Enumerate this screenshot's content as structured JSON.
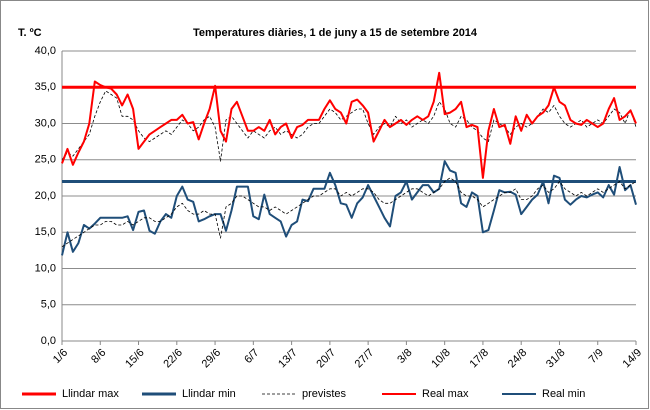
{
  "chart_data": {
    "type": "line",
    "title": "Temperatures diàries, 1 de juny a 15 de setembre 2014",
    "y_label": "T. ºC",
    "categories": [
      "1/6",
      null,
      null,
      null,
      null,
      null,
      null,
      "8/6",
      null,
      null,
      null,
      null,
      null,
      null,
      "15/6",
      null,
      null,
      null,
      null,
      null,
      null,
      "22/6",
      null,
      null,
      null,
      null,
      null,
      null,
      "29/6",
      null,
      null,
      null,
      null,
      null,
      null,
      "6/7",
      null,
      null,
      null,
      null,
      null,
      null,
      "13/7",
      null,
      null,
      null,
      null,
      null,
      null,
      "20/7",
      null,
      null,
      null,
      null,
      null,
      null,
      "27/7",
      null,
      null,
      null,
      null,
      null,
      null,
      "3/8",
      null,
      null,
      null,
      null,
      null,
      null,
      "10/8",
      null,
      null,
      null,
      null,
      null,
      null,
      "17/8",
      null,
      null,
      null,
      null,
      null,
      null,
      "24/8",
      null,
      null,
      null,
      null,
      null,
      null,
      "31/8",
      null,
      null,
      null,
      null,
      null,
      null,
      "7/9",
      null,
      null,
      null,
      null,
      null,
      null,
      "14/9"
    ],
    "ylim": [
      0,
      40
    ],
    "yticks": [
      {
        "value": 0,
        "label": "0,0"
      },
      {
        "value": 5,
        "label": "5,0"
      },
      {
        "value": 10,
        "label": "10,0"
      },
      {
        "value": 15,
        "label": "15,0"
      },
      {
        "value": 20,
        "label": "20,0"
      },
      {
        "value": 25,
        "label": "25,0"
      },
      {
        "value": 30,
        "label": "30,0"
      },
      {
        "value": 35,
        "label": "35,0"
      },
      {
        "value": 40,
        "label": "40,0"
      }
    ],
    "grid": true,
    "legend": "bottom",
    "series": [
      {
        "name": "Llindar max",
        "color": "#ff0000",
        "threshold": 35
      },
      {
        "name": "Llindar min",
        "color": "#1f4e79",
        "threshold": 22
      },
      {
        "name": "previstes",
        "color": "#000000",
        "dash": true,
        "values": [
          25,
          26,
          25.5,
          26.5,
          27.5,
          28.5,
          31,
          33,
          34.5,
          34,
          33.5,
          31,
          31,
          30.5,
          29,
          28,
          27.5,
          28,
          28.5,
          29,
          28.5,
          29.5,
          30.5,
          30,
          29,
          29.5,
          30.5,
          31,
          29.5,
          24.8,
          30.5,
          31,
          30,
          29,
          28,
          29,
          28.5,
          28,
          29,
          29.5,
          28.5,
          29,
          28.5,
          28,
          28.5,
          29.5,
          30,
          30,
          31,
          32,
          31.5,
          30.5,
          31,
          31.5,
          32,
          32,
          30,
          28.5,
          29.5,
          30,
          29.5,
          31,
          30,
          30.5,
          29.5,
          30,
          30.5,
          30,
          31,
          33,
          32,
          30,
          29.5,
          31,
          30.5,
          29.5,
          29,
          28,
          27.5,
          30.5,
          30,
          29.5,
          28.5,
          29.5,
          30,
          29.5,
          30,
          31,
          32,
          31.5,
          32.5,
          31,
          30,
          29.5,
          30,
          30.5,
          29.5,
          30,
          30.5,
          30,
          31,
          32,
          31.5,
          30,
          32,
          29.5
        ]
      },
      {
        "name": "Real max",
        "color": "#ff0000",
        "values": [
          24.5,
          26.5,
          24.3,
          26,
          27.5,
          30,
          35.8,
          35.3,
          35,
          34.8,
          34,
          32.5,
          34,
          32,
          26.5,
          27.5,
          28.5,
          29,
          29.5,
          30,
          30.5,
          30.5,
          31.2,
          30,
          30.2,
          27.8,
          30,
          32,
          35.2,
          29,
          27.5,
          32,
          33,
          31,
          29,
          29,
          29.5,
          29,
          30.5,
          28.5,
          29.5,
          30,
          28,
          29.5,
          29.8,
          30.5,
          30.5,
          30.5,
          32,
          33.2,
          32,
          31.5,
          30,
          33,
          33.3,
          32.5,
          31.5,
          27.5,
          29,
          30.5,
          29.5,
          30,
          30.5,
          29.8,
          30.5,
          31,
          30.5,
          31,
          33,
          37,
          31.3,
          31.5,
          32,
          33,
          29.5,
          29.8,
          29.5,
          22.5,
          29,
          32,
          29.5,
          29.8,
          27.2,
          31,
          29,
          31.2,
          30,
          31,
          31.5,
          32.5,
          35,
          33,
          32.5,
          30.5,
          30,
          29.8,
          30.5,
          30,
          29.5,
          30,
          32,
          33.5,
          30.5,
          31,
          31.8,
          30
        ]
      },
      {
        "name": "Real min",
        "color": "#1f4e79",
        "values": [
          11.8,
          15,
          12.3,
          13.5,
          16,
          15.5,
          16.2,
          17,
          17,
          17,
          17,
          17,
          17.2,
          15.3,
          17.8,
          18,
          15.2,
          14.8,
          16.5,
          17.5,
          17,
          20,
          21.3,
          19.5,
          19.2,
          16.5,
          16.8,
          17.2,
          17.5,
          17.5,
          15.2,
          18,
          21.3,
          21.3,
          21.3,
          17.2,
          16.8,
          20.2,
          17.5,
          17,
          16.5,
          14.4,
          16,
          16.5,
          19.5,
          19.3,
          21,
          21,
          21,
          23.2,
          21.5,
          19,
          18.8,
          17,
          19,
          19.8,
          21.5,
          20,
          18.5,
          17,
          15.8,
          20,
          20.5,
          22,
          19.5,
          20.5,
          21.5,
          21.5,
          20.5,
          21,
          24.8,
          23.5,
          23.2,
          19,
          18.5,
          20.5,
          20,
          15,
          15.3,
          18,
          20.8,
          20.5,
          20.6,
          20.2,
          17.5,
          18.5,
          19.5,
          20.2,
          22,
          19,
          22.8,
          22.5,
          19.5,
          18.8,
          19.5,
          20,
          19.8,
          20.2,
          20.5,
          19.8,
          21.5,
          20.2,
          24,
          20.8,
          21.5,
          18.8
        ]
      },
      {
        "color": "#000000",
        "dash": true,
        "values": [
          13,
          13.5,
          14,
          14.5,
          15,
          15.5,
          16,
          16,
          16.5,
          16.5,
          16,
          16,
          16.5,
          16,
          16.5,
          17,
          17,
          16.5,
          16.5,
          17,
          17.5,
          18.5,
          19,
          18,
          17.5,
          17.5,
          18,
          17.5,
          17.5,
          14.2,
          18.5,
          19,
          20,
          20,
          19.5,
          19,
          18.5,
          18.5,
          18,
          18.5,
          18,
          17.5,
          18,
          18.5,
          19,
          19.5,
          20,
          20,
          20.5,
          21,
          21,
          20,
          20.5,
          20,
          20.5,
          21,
          21,
          20.5,
          19.5,
          19,
          19,
          19.5,
          20,
          20.5,
          21,
          21,
          20.5,
          20,
          20.5,
          21,
          22,
          22.5,
          22,
          20.5,
          20,
          20,
          19.5,
          18.5,
          19,
          19.5,
          20,
          20.5,
          20.5,
          21,
          19.5,
          19.5,
          20,
          21,
          21.5,
          20.5,
          21,
          22,
          21,
          20.5,
          20,
          20.5,
          20,
          20.5,
          21,
          20.5,
          21,
          21.5,
          22,
          21,
          21.5,
          22
        ]
      }
    ]
  }
}
